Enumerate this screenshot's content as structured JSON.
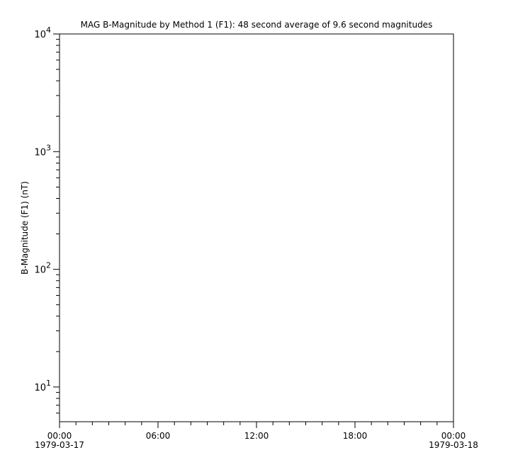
{
  "chart_data": {
    "type": "line",
    "title": "MAG  B-Magnitude by Method 1 (F1): 48 second average of 9.6 second magnitudes",
    "xlabel": "",
    "ylabel": "B-Magnitude (F1) (nT)",
    "yscale": "log",
    "ylim": [
      5.07,
      10000
    ],
    "xlim": [
      "1979-03-17T00:00",
      "1979-03-18T00:00"
    ],
    "y_ticks": [
      {
        "base": "10",
        "exp": "1",
        "value": 10
      },
      {
        "base": "10",
        "exp": "2",
        "value": 100
      },
      {
        "base": "10",
        "exp": "3",
        "value": 1000
      },
      {
        "base": "10",
        "exp": "4",
        "value": 10000
      }
    ],
    "x_ticks": [
      {
        "hours": 0,
        "time": "00:00",
        "date": "1979-03-17"
      },
      {
        "hours": 6,
        "time": "06:00",
        "date": ""
      },
      {
        "hours": 12,
        "time": "12:00",
        "date": ""
      },
      {
        "hours": 18,
        "time": "18:00",
        "date": ""
      },
      {
        "hours": 24,
        "time": "00:00",
        "date": "1979-03-18"
      }
    ],
    "x_minor_step_hours": 1,
    "series": [],
    "grid": false
  }
}
